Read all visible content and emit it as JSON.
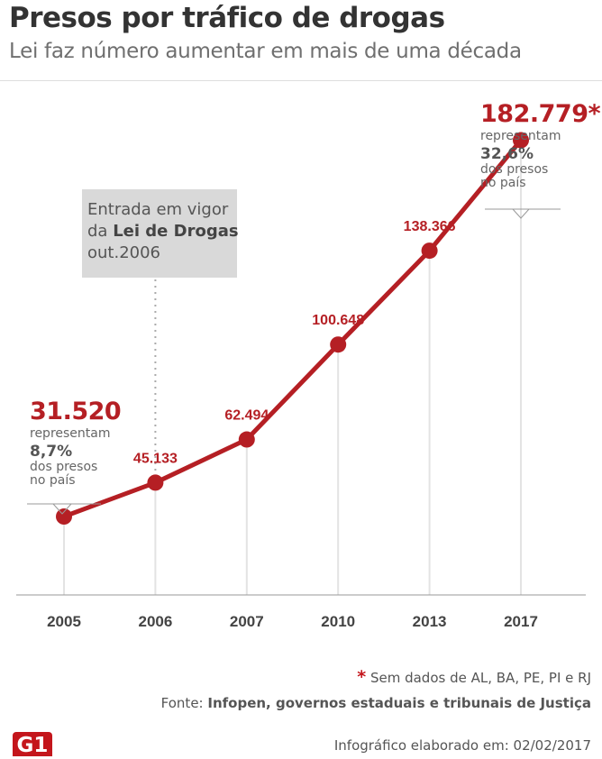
{
  "header": {
    "title": "Presos por tráfico de drogas",
    "subtitle": "Lei faz número aumentar em mais de uma década"
  },
  "annotation": {
    "line1": "Entrada em vigor",
    "line2_prefix": "da ",
    "line2_bold": "Lei de Drogas",
    "line3": "out.2006"
  },
  "callout_first": {
    "value": "31.520",
    "represent": "representam",
    "percent": "8,7%",
    "desc1": "dos presos",
    "desc2": "no país"
  },
  "callout_last": {
    "value": "182.779*",
    "represent": "representam",
    "percent": "32,6%",
    "desc1": "dos presos",
    "desc2": "no país"
  },
  "footer": {
    "footnote_star": "*",
    "footnote_text": "Sem dados de AL, BA, PE, PI e RJ",
    "source_prefix": "Fonte: ",
    "source_text": "Infopen, governos estaduais e tribunais de Justiça",
    "logo": "G1",
    "credit": "Infográfico elaborado em: 02/02/2017"
  },
  "colors": {
    "line": "#b51f24",
    "value_label": "#b51f24",
    "grid": "#e3e3e3",
    "annotation_bg": "#d9d9d9"
  },
  "chart_data": {
    "type": "line",
    "title": "Presos por tráfico de drogas",
    "subtitle": "Lei faz número aumentar em mais de uma década",
    "categories": [
      "2005",
      "2006",
      "2007",
      "2010",
      "2013",
      "2017"
    ],
    "values": [
      31520,
      45133,
      62494,
      100648,
      138366,
      182779
    ],
    "labels": [
      "31.520",
      "45.133",
      "62.494",
      "100.648",
      "138.366",
      "182.779*"
    ],
    "xlabel": "",
    "ylabel": "",
    "ylim": [
      0,
      200000
    ],
    "grid": "vertical",
    "annotation_category": "2006"
  }
}
